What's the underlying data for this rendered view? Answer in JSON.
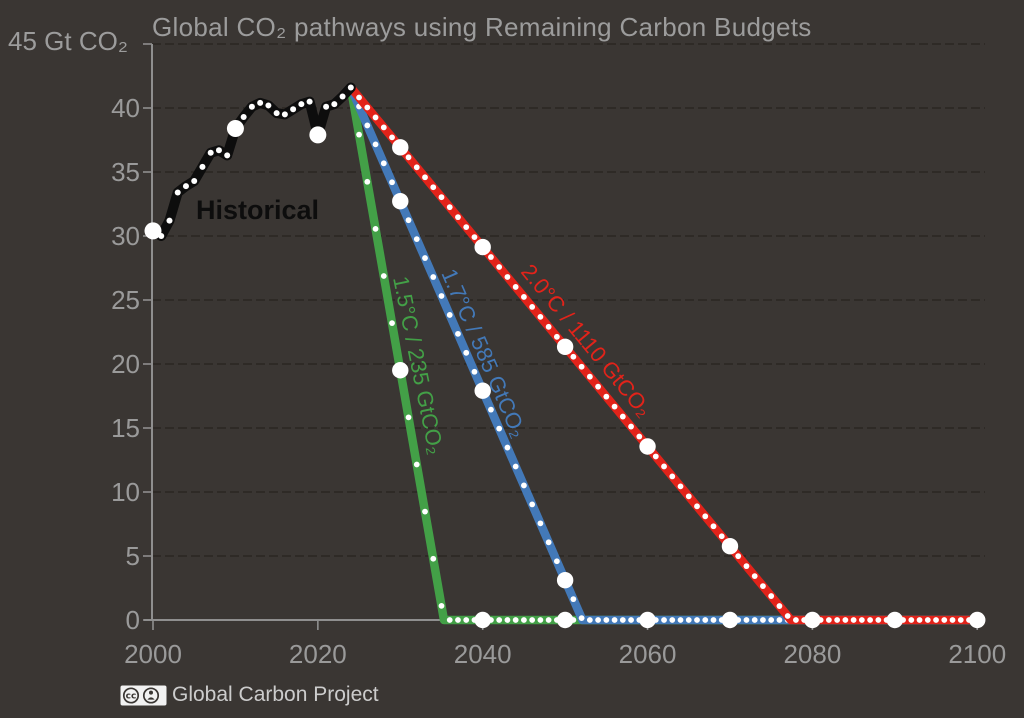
{
  "chart_data": {
    "type": "line",
    "title": "Global CO₂ pathways using Remaining Carbon Budgets",
    "attribution": "Global Carbon Project",
    "grid": "horizontal-only",
    "legend_position": "inline-line-labels",
    "y_axis": {
      "unit_label": "45 Gt CO₂",
      "range": [
        0,
        45
      ],
      "ticks": [
        0,
        5,
        10,
        15,
        20,
        25,
        30,
        35,
        40,
        45
      ],
      "labeled_ticks": [
        0,
        5,
        10,
        15,
        20,
        25,
        30,
        35,
        40
      ],
      "gridlines": [
        5,
        10,
        15,
        20,
        25,
        30,
        35,
        40,
        45
      ]
    },
    "x_axis": {
      "range": [
        2000,
        2100
      ],
      "ticks": [
        2000,
        2020,
        2040,
        2060,
        2080,
        2100
      ]
    },
    "historical": {
      "label": "Historical",
      "color": "#0d0d0d",
      "years": [
        2000,
        2001,
        2002,
        2003,
        2004,
        2005,
        2006,
        2007,
        2008,
        2009,
        2010,
        2011,
        2012,
        2013,
        2014,
        2015,
        2016,
        2017,
        2018,
        2019,
        2020,
        2021,
        2022,
        2023,
        2024
      ],
      "values": [
        30.4,
        30.0,
        31.2,
        33.4,
        33.9,
        34.3,
        35.4,
        36.5,
        36.7,
        36.3,
        38.4,
        39.3,
        40.1,
        40.4,
        40.2,
        39.6,
        39.5,
        39.9,
        40.3,
        40.5,
        37.9,
        40.1,
        40.3,
        40.9,
        41.6
      ]
    },
    "pathways": [
      {
        "id": "p15",
        "label": "1.5°C / 235 GtCO₂",
        "temperature": "1.5°C",
        "budget_gtco2": 235,
        "color": "#43a047",
        "start_year": 2024,
        "start_value": 41.6,
        "zero_year": 2035.3,
        "end_year": 2100
      },
      {
        "id": "p17",
        "label": "1.7°C / 585 GtCO₂",
        "temperature": "1.7°C",
        "budget_gtco2": 585,
        "color": "#4379b8",
        "start_year": 2024,
        "start_value": 41.6,
        "zero_year": 2052.1,
        "end_year": 2100
      },
      {
        "id": "p20",
        "label": "2.0°C / 1110 GtCO₂",
        "temperature": "2.0°C",
        "budget_gtco2": 1110,
        "color": "#e2231a",
        "start_year": 2024,
        "start_value": 41.6,
        "zero_year": 2077.4,
        "end_year": 2100
      }
    ],
    "colors": {
      "background": "#3a3633",
      "grid": "#28241f",
      "axis": "#8f8f8f",
      "tick_text": "#9a9a9a",
      "title_text": "#9c9c9c",
      "dot": "#ffffff",
      "attribution_text": "#cccccc",
      "badge_background": "#f2f2f2",
      "badge_glyph": "#3a3633"
    }
  }
}
